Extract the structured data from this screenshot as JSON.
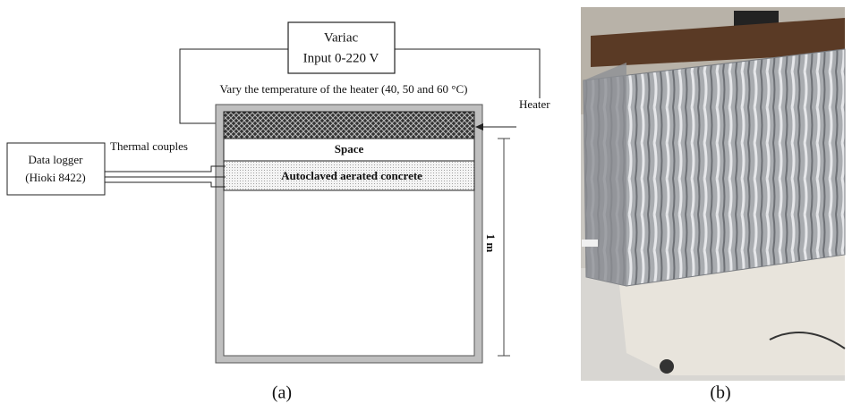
{
  "diagram": {
    "variac": {
      "title": "Variac",
      "input": "Input 0-220 V"
    },
    "heater_note": "Vary the temperature of the heater (40, 50 and 60 °C)",
    "heater_label": "Heater",
    "data_logger": {
      "title": "Data logger",
      "model": "(Hioki 8422)"
    },
    "thermocouples_label": "Thermal couples",
    "layers": {
      "space": "Space",
      "concrete": "Autoclaved aerated concrete"
    },
    "dimension": "1 m"
  },
  "captions": {
    "a": "(a)",
    "b": "(b)"
  }
}
